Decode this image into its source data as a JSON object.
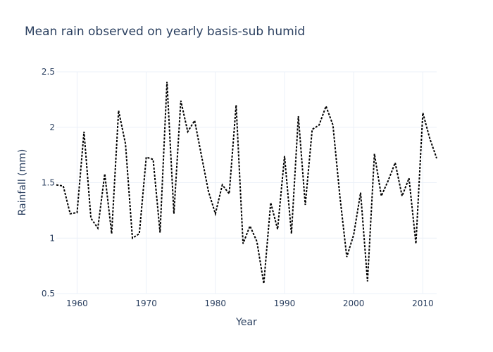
{
  "chart_data": {
    "type": "line",
    "title": "Mean rain observed on yearly basis-sub humid",
    "xlabel": "Year",
    "ylabel": "Rainfall (mm)",
    "xlim": [
      1957,
      2012
    ],
    "ylim": [
      0.5,
      2.5
    ],
    "x_ticks": [
      1960,
      1970,
      1980,
      1990,
      2000,
      2010
    ],
    "y_ticks": [
      0.5,
      1,
      1.5,
      2,
      2.5
    ],
    "y_tick_labels": [
      "0.5",
      "1",
      "1.5",
      "2",
      "2.5"
    ],
    "grid": true,
    "legend": "none",
    "line_style": "dotted",
    "colors": {
      "series": "#000000",
      "text": "#2a3f5f",
      "grid": "#ebf0f8"
    },
    "series": [
      {
        "x": [
          1957,
          1958,
          1959,
          1960,
          1961,
          1962,
          1963,
          1964,
          1965,
          1966,
          1967,
          1968,
          1969,
          1970,
          1971,
          1972,
          1973,
          1974,
          1975,
          1976,
          1977,
          1978,
          1979,
          1980,
          1981,
          1982,
          1983,
          1984,
          1985,
          1986,
          1987,
          1988,
          1989,
          1990,
          1991,
          1992,
          1993,
          1994,
          1995,
          1996,
          1997,
          1998,
          1999,
          2000,
          2001,
          2002,
          2003,
          2004,
          2005,
          2006,
          2007,
          2008,
          2009,
          2010,
          2011,
          2012
        ],
        "values": [
          1.48,
          1.47,
          1.22,
          1.23,
          1.96,
          1.18,
          1.09,
          1.58,
          1.04,
          2.15,
          1.85,
          1.0,
          1.04,
          1.73,
          1.71,
          1.05,
          2.41,
          1.22,
          2.24,
          1.96,
          2.06,
          1.74,
          1.42,
          1.22,
          1.48,
          1.4,
          2.2,
          0.95,
          1.11,
          0.97,
          0.59,
          1.32,
          1.08,
          1.74,
          1.04,
          2.1,
          1.3,
          1.98,
          2.02,
          2.19,
          2.02,
          1.38,
          0.83,
          1.03,
          1.41,
          0.61,
          1.76,
          1.38,
          1.52,
          1.68,
          1.38,
          1.54,
          0.95,
          2.13,
          1.9,
          1.72
        ]
      }
    ]
  }
}
